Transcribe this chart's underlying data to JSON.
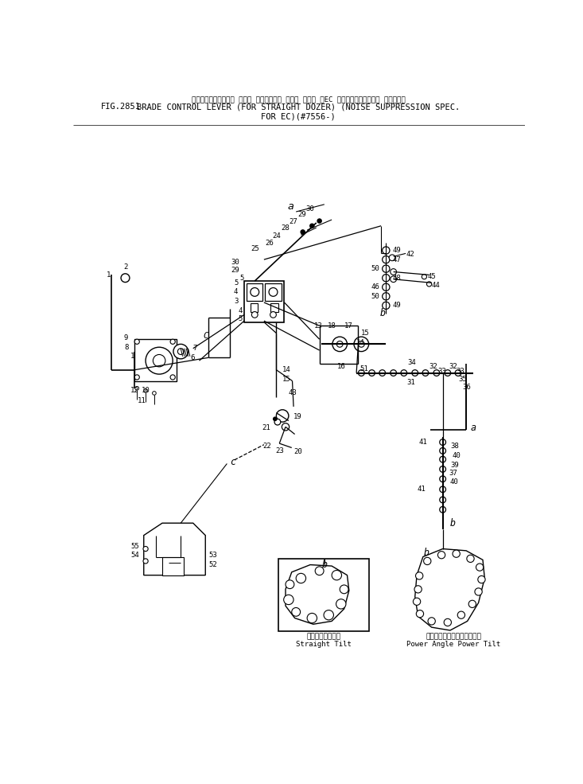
{
  "fig_number": "FIG.2851",
  "title_jp": "ブレードコントロール レバー （ストレート ドーザ ヨゥ） （EC ノイズサプレッション スペック）",
  "title_en1": "BRADE CONTROL LEVER (FOR STRAIGHT DOZER) (NOISE SUPPRESSION SPEC.",
  "title_en2": "FOR EC)(#7556-)",
  "fig_label": "FIG.2851",
  "bg_color": "#ffffff",
  "lc": "#000000",
  "straight_tilt_jp": "ストレートチルト",
  "straight_tilt_en": "Straight Tilt",
  "power_angle_jp": "ハワーアングルハワーチルト",
  "power_angle_en": "Power Angle Power Tilt"
}
